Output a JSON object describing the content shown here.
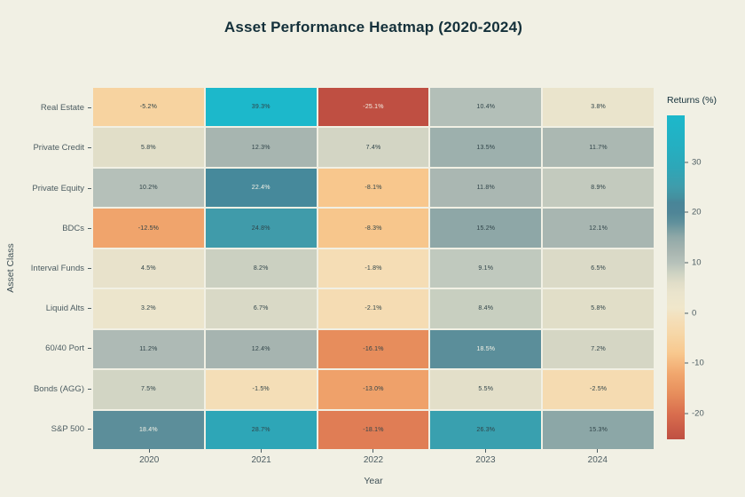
{
  "palette": {
    "background": "#f1f0e4",
    "title_text": "#14303a",
    "axis_text": "#3e4f55",
    "tick_text": "#4c5c61",
    "cell_text_dark": "#2f4348",
    "cell_text_light": "#f4f2e6"
  },
  "chart_data": {
    "type": "heatmap",
    "title": "Asset Performance Heatmap (2020-2024)",
    "xlabel": "Year",
    "ylabel": "Asset Class",
    "colorbar_label": "Returns (%)",
    "categories_x": [
      "2020",
      "2021",
      "2022",
      "2023",
      "2024"
    ],
    "categories_y": [
      "Real Estate",
      "Private Credit",
      "Private Equity",
      "BDCs",
      "Interval Funds",
      "Liquid Alts",
      "60/40 Port",
      "Bonds (AGG)",
      "S&P 500"
    ],
    "values": [
      [
        -5.2,
        39.3,
        -25.1,
        10.4,
        3.8
      ],
      [
        5.8,
        12.3,
        7.4,
        13.5,
        11.7
      ],
      [
        10.2,
        22.4,
        -8.1,
        11.8,
        8.9
      ],
      [
        -12.5,
        24.8,
        -8.3,
        15.2,
        12.1
      ],
      [
        4.5,
        8.2,
        -1.8,
        9.1,
        6.5
      ],
      [
        3.2,
        6.7,
        -2.1,
        8.4,
        5.8
      ],
      [
        11.2,
        12.4,
        -16.1,
        18.5,
        7.2
      ],
      [
        7.5,
        -1.5,
        -13.0,
        5.5,
        -2.5
      ],
      [
        18.4,
        28.7,
        -18.1,
        26.3,
        15.3
      ]
    ],
    "value_suffix": "%",
    "vmin": -25.1,
    "vmax": 39.3,
    "colorbar_ticks": [
      30,
      20,
      10,
      0,
      -10,
      -20
    ],
    "colormap": [
      {
        "v": -25.1,
        "color": "#bf4f42"
      },
      {
        "v": -20.0,
        "color": "#d96e4e"
      },
      {
        "v": -16.0,
        "color": "#e78e5c"
      },
      {
        "v": -12.0,
        "color": "#f1a76e"
      },
      {
        "v": -8.0,
        "color": "#f8c88e"
      },
      {
        "v": -4.0,
        "color": "#f6d7a8"
      },
      {
        "v": -1.0,
        "color": "#f4dfba"
      },
      {
        "v": 1.0,
        "color": "#f0e7cb"
      },
      {
        "v": 4.0,
        "color": "#eae4cc"
      },
      {
        "v": 6.0,
        "color": "#e0ddc8"
      },
      {
        "v": 8.0,
        "color": "#cdd2c2"
      },
      {
        "v": 10.0,
        "color": "#b6c1ba"
      },
      {
        "v": 12.0,
        "color": "#a9b6b1"
      },
      {
        "v": 15.0,
        "color": "#91a9a8"
      },
      {
        "v": 17.0,
        "color": "#71999f"
      },
      {
        "v": 18.0,
        "color": "#60909c"
      },
      {
        "v": 19.0,
        "color": "#568b98"
      },
      {
        "v": 20.0,
        "color": "#4f8597"
      },
      {
        "v": 22.0,
        "color": "#488598"
      },
      {
        "v": 23.0,
        "color": "#44909f"
      },
      {
        "v": 25.0,
        "color": "#3f9cab"
      },
      {
        "v": 29.0,
        "color": "#2da7b8"
      },
      {
        "v": 33.0,
        "color": "#25afc1"
      },
      {
        "v": 39.3,
        "color": "#1cb8cb"
      }
    ]
  }
}
